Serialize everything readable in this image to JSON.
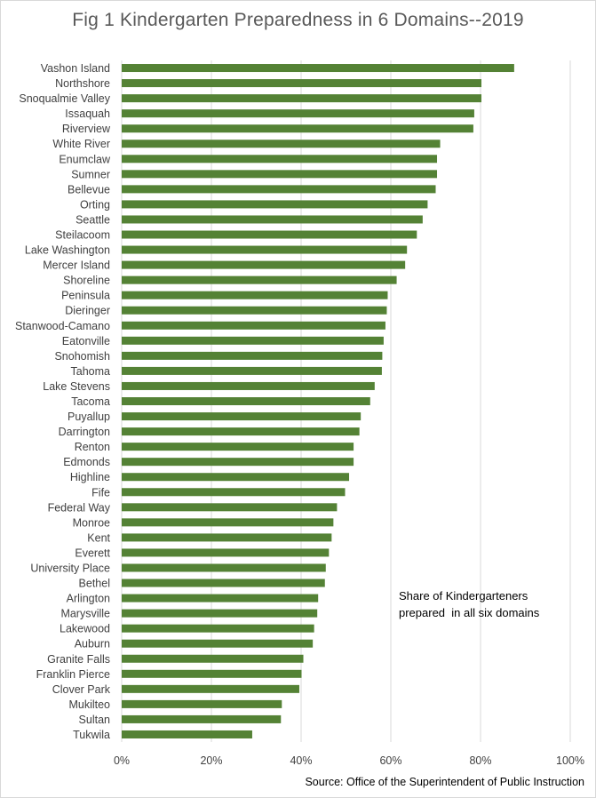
{
  "chart_data": {
    "type": "bar",
    "orientation": "horizontal",
    "title": "Fig 1 Kindergarten Preparedness in 6 Domains--2019",
    "categories": [
      "Vashon Island",
      "Northshore",
      "Snoqualmie Valley",
      "Issaquah",
      "Riverview",
      "White River",
      "Enumclaw",
      "Sumner",
      "Bellevue",
      "Orting",
      "Seattle",
      "Steilacoom",
      "Lake Washington",
      "Mercer Island",
      "Shoreline",
      "Peninsula",
      "Dieringer",
      "Stanwood-Camano",
      "Eatonville",
      "Snohomish",
      "Tahoma",
      "Lake Stevens",
      "Tacoma",
      "Puyallup",
      "Darrington",
      "Renton",
      "Edmonds",
      "Highline",
      "Fife",
      "Federal Way",
      "Monroe",
      "Kent",
      "Everett",
      "University Place",
      "Bethel",
      "Arlington",
      "Marysville",
      "Lakewood",
      "Auburn",
      "Granite Falls",
      "Franklin Pierce",
      "Clover Park",
      "Mukilteo",
      "Sultan",
      "Tukwila"
    ],
    "values": [
      87.5,
      80.2,
      80.2,
      78.6,
      78.4,
      71.0,
      70.3,
      70.3,
      70.0,
      68.2,
      67.1,
      65.8,
      63.6,
      63.2,
      61.3,
      59.3,
      59.1,
      58.8,
      58.4,
      58.1,
      58.0,
      56.4,
      55.4,
      53.3,
      53.0,
      51.7,
      51.7,
      50.7,
      49.8,
      48.0,
      47.2,
      46.8,
      46.2,
      45.5,
      45.3,
      43.8,
      43.6,
      42.9,
      42.6,
      40.5,
      40.1,
      39.6,
      35.7,
      35.5,
      29.1
    ],
    "x_ticks": [
      "0%",
      "20%",
      "40%",
      "60%",
      "80%",
      "100%"
    ],
    "xlim": [
      0,
      100
    ],
    "grid": "vertical",
    "legend": "none",
    "annotation": [
      "Share of Kindergarteners",
      "prepared  in all six domains"
    ],
    "source": "Source: Office of the Superintendent of Public Instruction",
    "bar_color": "#548235",
    "grid_color": "#d9d9d9"
  }
}
